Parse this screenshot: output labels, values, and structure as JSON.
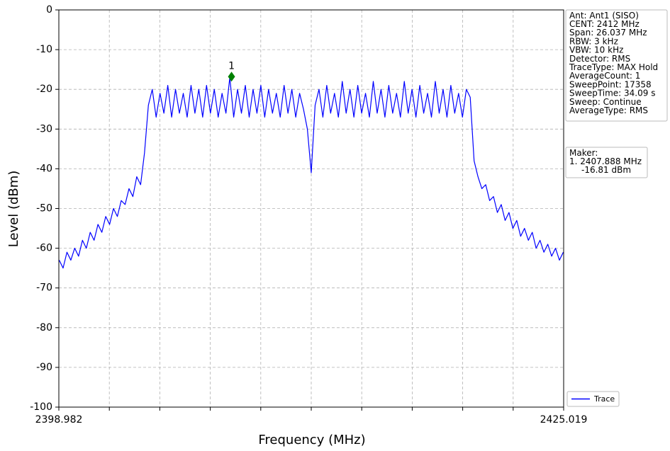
{
  "chart_data": {
    "type": "line",
    "xlabel": "Frequency (MHz)",
    "ylabel": "Level (dBm)",
    "xlim": [
      2398.982,
      2425.019
    ],
    "ylim": [
      -100,
      0
    ],
    "xticks": [
      2398.982,
      2425.019
    ],
    "xminor_ticks": [
      2401.5857,
      2404.1894,
      2406.7931,
      2409.3968,
      2412.0005,
      2414.6042,
      2417.2079,
      2419.8116,
      2422.4153
    ],
    "yticks": [
      0,
      -10,
      -20,
      -30,
      -40,
      -50,
      -60,
      -70,
      -80,
      -90,
      -100
    ],
    "grid": true,
    "legend": "lower right",
    "series": [
      {
        "name": "Trace",
        "color": "#0000ff",
        "x": [
          2399.0,
          2399.2,
          2399.4,
          2399.6,
          2399.8,
          2400.0,
          2400.2,
          2400.4,
          2400.6,
          2400.8,
          2401.0,
          2401.2,
          2401.4,
          2401.6,
          2401.8,
          2402.0,
          2402.2,
          2402.4,
          2402.6,
          2402.8,
          2403.0,
          2403.2,
          2403.4,
          2403.6,
          2403.8,
          2404.0,
          2404.2,
          2404.4,
          2404.6,
          2404.8,
          2405.0,
          2405.2,
          2405.4,
          2405.6,
          2405.8,
          2406.0,
          2406.2,
          2406.4,
          2406.6,
          2406.8,
          2407.0,
          2407.2,
          2407.4,
          2407.6,
          2407.8,
          2408.0,
          2408.2,
          2408.4,
          2408.6,
          2408.8,
          2409.0,
          2409.2,
          2409.4,
          2409.6,
          2409.8,
          2410.0,
          2410.2,
          2410.4,
          2410.6,
          2410.8,
          2411.0,
          2411.2,
          2411.4,
          2411.6,
          2411.8,
          2412.0,
          2412.2,
          2412.4,
          2412.6,
          2412.8,
          2413.0,
          2413.2,
          2413.4,
          2413.6,
          2413.8,
          2414.0,
          2414.2,
          2414.4,
          2414.6,
          2414.8,
          2415.0,
          2415.2,
          2415.4,
          2415.6,
          2415.8,
          2416.0,
          2416.2,
          2416.4,
          2416.6,
          2416.8,
          2417.0,
          2417.2,
          2417.4,
          2417.6,
          2417.8,
          2418.0,
          2418.2,
          2418.4,
          2418.6,
          2418.8,
          2419.0,
          2419.2,
          2419.4,
          2419.6,
          2419.8,
          2420.0,
          2420.2,
          2420.4,
          2420.6,
          2420.8,
          2421.0,
          2421.2,
          2421.4,
          2421.6,
          2421.8,
          2422.0,
          2422.2,
          2422.4,
          2422.6,
          2422.8,
          2423.0,
          2423.2,
          2423.4,
          2423.6,
          2423.8,
          2424.0,
          2424.2,
          2424.4,
          2424.6,
          2424.8,
          2425.0
        ],
        "values": [
          -63,
          -65,
          -61,
          -63,
          -60,
          -62,
          -58,
          -60,
          -56,
          -58,
          -54,
          -56,
          -52,
          -54,
          -50,
          -52,
          -48,
          -49,
          -45,
          -47,
          -42,
          -44,
          -36,
          -24,
          -20,
          -27,
          -21,
          -26,
          -19,
          -27,
          -20,
          -26,
          -21,
          -27,
          -19,
          -26,
          -20,
          -27,
          -19,
          -26,
          -20,
          -27,
          -21,
          -26,
          -17,
          -27,
          -20,
          -26,
          -19,
          -27,
          -20,
          -26,
          -19,
          -27,
          -20,
          -26,
          -21,
          -27,
          -19,
          -26,
          -20,
          -27,
          -21,
          -25,
          -30,
          -41,
          -24,
          -20,
          -27,
          -19,
          -26,
          -21,
          -27,
          -18,
          -26,
          -20,
          -27,
          -19,
          -26,
          -21,
          -27,
          -18,
          -26,
          -20,
          -27,
          -19,
          -26,
          -21,
          -27,
          -18,
          -26,
          -20,
          -27,
          -19,
          -26,
          -21,
          -27,
          -18,
          -26,
          -20,
          -27,
          -19,
          -26,
          -21,
          -27,
          -20,
          -22,
          -38,
          -42,
          -45,
          -44,
          -48,
          -47,
          -51,
          -49,
          -53,
          -51,
          -55,
          -53,
          -57,
          -55,
          -58,
          -56,
          -60,
          -58,
          -61,
          -59,
          -62,
          -60,
          -63,
          -61
        ]
      }
    ],
    "marker": {
      "label": "1",
      "x": 2407.888,
      "y": -16.81,
      "color": "#008000"
    },
    "info": [
      "Ant: Ant1 (SISO)",
      "CENT: 2412 MHz",
      "Span: 26.037 MHz",
      "RBW: 3 kHz",
      "VBW: 10 kHz",
      "Detector: RMS",
      "TraceType: MAX Hold",
      "AverageCount: 1",
      "SweepPoint: 17358",
      "SweepTime: 34.09 s",
      "Sweep: Continue",
      "AverageType: RMS"
    ],
    "maker_box": [
      "Maker:",
      "1. 2407.888 MHz",
      "-16.81 dBm"
    ]
  }
}
